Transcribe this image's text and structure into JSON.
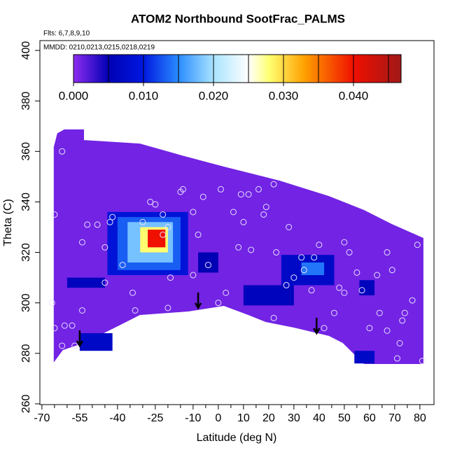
{
  "chart_data": {
    "type": "heatmap",
    "title": "ATOM2 Northbound SootFrac_PALMS",
    "flights_note": "Flts: 6,7,8,9,10",
    "dates_note": "MMDD: 0210,0213,0215,0218,0219",
    "x_label": "Latitude (deg N)",
    "y_label": "Theta (C)",
    "xlim": [
      -70.8,
      85.6
    ],
    "ylim": [
      259.7,
      403.9
    ],
    "xticks": [
      -70,
      -55,
      -40,
      -25,
      -10,
      0,
      10,
      20,
      30,
      40,
      50,
      60,
      70,
      80
    ],
    "xminor_ticks": [
      -65,
      -60,
      -50,
      -45,
      -35,
      -30,
      -20,
      -15,
      -5,
      5,
      15,
      25,
      35,
      45,
      55,
      65,
      75
    ],
    "yticks": [
      260,
      280,
      300,
      320,
      340,
      360,
      380,
      400
    ],
    "colorbar": {
      "lim": [
        0,
        0.0468
      ],
      "ticks": [
        {
          "value": 0,
          "label": "0.000"
        },
        {
          "value": 0.01,
          "label": "0.010"
        },
        {
          "value": 0.02,
          "label": "0.020"
        },
        {
          "value": 0.03,
          "label": "0.030"
        },
        {
          "value": 0.04,
          "label": "0.040"
        }
      ],
      "levels": [
        0.005,
        0.01,
        0.015,
        0.02,
        0.025,
        0.03,
        0.035,
        0.04,
        0.045
      ],
      "stops": [
        0,
        0.005,
        0.01,
        0.015,
        0.02,
        0.025,
        0.028,
        0.033,
        0.04,
        0.0468
      ],
      "colors": [
        "#8f2cf0",
        "#0000b4",
        "#0018e0",
        "#2a8cff",
        "#a8e4ff",
        "#ffffff",
        "#ffff70",
        "#ffa000",
        "#f01000",
        "#a01818"
      ]
    },
    "region": {
      "lat": [
        -65.3,
        -63.9,
        -61.1,
        -53.3,
        -53.3,
        -31.1,
        -14.4,
        2.2,
        24.4,
        43.9,
        57.8,
        68.9,
        81.4,
        81.4,
        57.8,
        49.4,
        43.9,
        30.0,
        18.9,
        11.9,
        2.2,
        -11.7,
        -31.1,
        -39.4,
        -53.3,
        -61.7,
        -65.3
      ],
      "theta": [
        361.7,
        367.2,
        368.7,
        368.7,
        364.5,
        363.1,
        358.4,
        354.0,
        348.4,
        342.3,
        336.8,
        331.2,
        325.7,
        275.8,
        275.8,
        284.1,
        286.9,
        290.2,
        292.4,
        295.2,
        298.8,
        296.6,
        295.2,
        291.0,
        284.1,
        281.3,
        276.4
      ],
      "value": 0.001
    },
    "cells": [
      {
        "lat": [
          -60,
          -45
        ],
        "theta": [
          306,
          310
        ],
        "value": 0.006
      },
      {
        "lat": [
          -55,
          -42
        ],
        "theta": [
          281,
          288
        ],
        "value": 0.007
      },
      {
        "lat": [
          -44,
          -12
        ],
        "theta": [
          311,
          336
        ],
        "value": 0.009
      },
      {
        "lat": [
          -40,
          -15
        ],
        "theta": [
          313,
          334
        ],
        "value": 0.013
      },
      {
        "lat": [
          -36,
          -18
        ],
        "theta": [
          316,
          332
        ],
        "value": 0.018
      },
      {
        "lat": [
          -31,
          -20
        ],
        "theta": [
          320,
          330
        ],
        "value": 0.028
      },
      {
        "lat": [
          -28,
          -21
        ],
        "theta": [
          322,
          329
        ],
        "value": 0.04
      },
      {
        "lat": [
          10,
          30
        ],
        "theta": [
          299,
          307
        ],
        "value": 0.006
      },
      {
        "lat": [
          25,
          46
        ],
        "theta": [
          307,
          319
        ],
        "value": 0.007
      },
      {
        "lat": [
          33,
          42
        ],
        "theta": [
          311,
          316
        ],
        "value": 0.014
      },
      {
        "lat": [
          56,
          62
        ],
        "theta": [
          303,
          309
        ],
        "value": 0.006
      },
      {
        "lat": [
          54,
          62
        ],
        "theta": [
          276,
          281
        ],
        "value": 0.007
      },
      {
        "lat": [
          -8,
          0
        ],
        "theta": [
          312,
          320
        ],
        "value": 0.005
      }
    ],
    "observations": {
      "lat": [
        -65,
        -62,
        -66,
        -65,
        -61,
        -58,
        -62,
        -57,
        -54,
        -52,
        -48,
        -54,
        -45,
        -45,
        -42,
        -43,
        -38,
        -34,
        -33,
        -30,
        -27,
        -25,
        -22,
        -20,
        -22,
        -19,
        -20,
        -15,
        -14,
        -10,
        -8,
        -10,
        -6,
        -4,
        0,
        1,
        3,
        6,
        8,
        9,
        10,
        12,
        13,
        16,
        18,
        19,
        22,
        22,
        23,
        27,
        28,
        30,
        33,
        34,
        37,
        38,
        40,
        42,
        46,
        48,
        50,
        50,
        52,
        55,
        57,
        60,
        63,
        64,
        67,
        67,
        69,
        71,
        72,
        73,
        74,
        77,
        79,
        81
      ],
      "theta": [
        335,
        360,
        300,
        290,
        291,
        291,
        283,
        283,
        297,
        331,
        331,
        324,
        308,
        322,
        334,
        332,
        315,
        304,
        297,
        332,
        340,
        339,
        335,
        330,
        327,
        310,
        298,
        344,
        345,
        336,
        327,
        311,
        342,
        315,
        300,
        345,
        304,
        336,
        322,
        343,
        332,
        343,
        321,
        345,
        335,
        338,
        347,
        294,
        320,
        307,
        330,
        310,
        318,
        313,
        305,
        318,
        323,
        290,
        296,
        306,
        324,
        304,
        320,
        312,
        305,
        290,
        311,
        296,
        320,
        289,
        313,
        278,
        284,
        293,
        296,
        301,
        323,
        277
      ]
    },
    "arrows": {
      "lat": [
        -55,
        -8,
        39
      ],
      "theta": [
        283,
        298,
        288
      ]
    }
  }
}
